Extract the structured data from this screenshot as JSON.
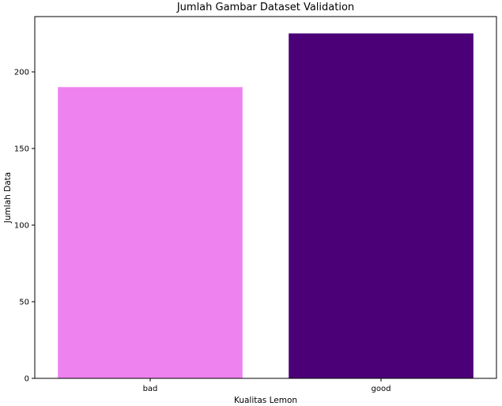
{
  "chart_data": {
    "type": "bar",
    "title": "Jumlah Gambar Dataset Validation",
    "xlabel": "Kualitas Lemon",
    "ylabel": "Jumlah Data",
    "categories": [
      "bad",
      "good"
    ],
    "values": [
      190,
      225
    ],
    "colors": [
      "#ee82ee",
      "#4b0078"
    ],
    "ylim": [
      0,
      236
    ],
    "yticks": [
      0,
      50,
      100,
      150,
      200
    ],
    "grid": false,
    "legend": "none"
  }
}
